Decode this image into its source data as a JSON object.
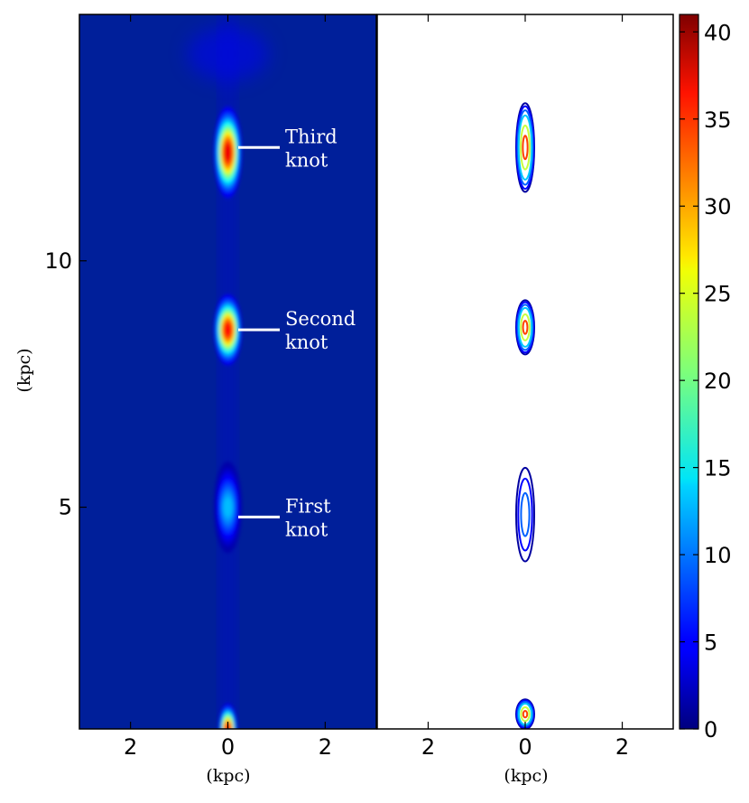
{
  "chart_data": [
    {
      "type": "heatmap",
      "panel": "left",
      "xlabel": "(kpc)",
      "ylabel": "(kpc)",
      "xlim": [
        -3.05,
        3.05
      ],
      "ylim": [
        0.5,
        15.0
      ],
      "xticks": [
        -2,
        0,
        2
      ],
      "xtick_labels": [
        "2",
        "0",
        "2"
      ],
      "yticks": [
        5,
        10
      ],
      "ytick_labels": [
        "5",
        "10"
      ],
      "colormap": "jet",
      "background_value": 1.5,
      "blobs": [
        {
          "x": 0,
          "y": 0.5,
          "peak": 38,
          "sy": 0.25,
          "sx": 0.06
        },
        {
          "x": 0,
          "y": 5.0,
          "peak": 14,
          "sy": 0.45,
          "sx": 0.1
        },
        {
          "x": 0,
          "y": 8.6,
          "peak": 39,
          "sy": 0.35,
          "sx": 0.1
        },
        {
          "x": 0,
          "y": 12.2,
          "peak": 40,
          "sy": 0.45,
          "sx": 0.1
        }
      ],
      "annotations": [
        {
          "line1": "First",
          "line2": "knot",
          "y": 4.8
        },
        {
          "line1": "Second",
          "line2": "knot",
          "y": 8.6
        },
        {
          "line1": "Third",
          "line2": "knot",
          "y": 12.3
        }
      ]
    },
    {
      "type": "contour",
      "panel": "right",
      "xlabel": "(kpc)",
      "xlim": [
        -3.05,
        3.05
      ],
      "ylim": [
        0.5,
        15.0
      ],
      "xticks": [
        -2,
        0,
        2
      ],
      "xtick_labels": [
        "2",
        "0",
        "2"
      ],
      "contour_levels": [
        3,
        6,
        10,
        15,
        25,
        35
      ],
      "knots": [
        {
          "y_center": 5.0,
          "y_min": 3.9,
          "y_max": 5.8,
          "peak": 14
        },
        {
          "y_center": 8.6,
          "y_min": 8.1,
          "y_max": 9.2,
          "peak": 39
        },
        {
          "y_center": 12.2,
          "y_min": 11.4,
          "y_max": 13.2,
          "peak": 40
        },
        {
          "y_center": 0.6,
          "y_min": 0.5,
          "y_max": 1.1,
          "peak": 38
        }
      ]
    },
    {
      "type": "colorbar",
      "range": [
        0,
        41
      ],
      "ticks": [
        0,
        5,
        10,
        15,
        20,
        25,
        30,
        35,
        40
      ],
      "tick_labels": [
        "0",
        "5",
        "10",
        "15",
        "20",
        "25",
        "30",
        "35",
        "40"
      ],
      "colormap": "jet"
    }
  ]
}
